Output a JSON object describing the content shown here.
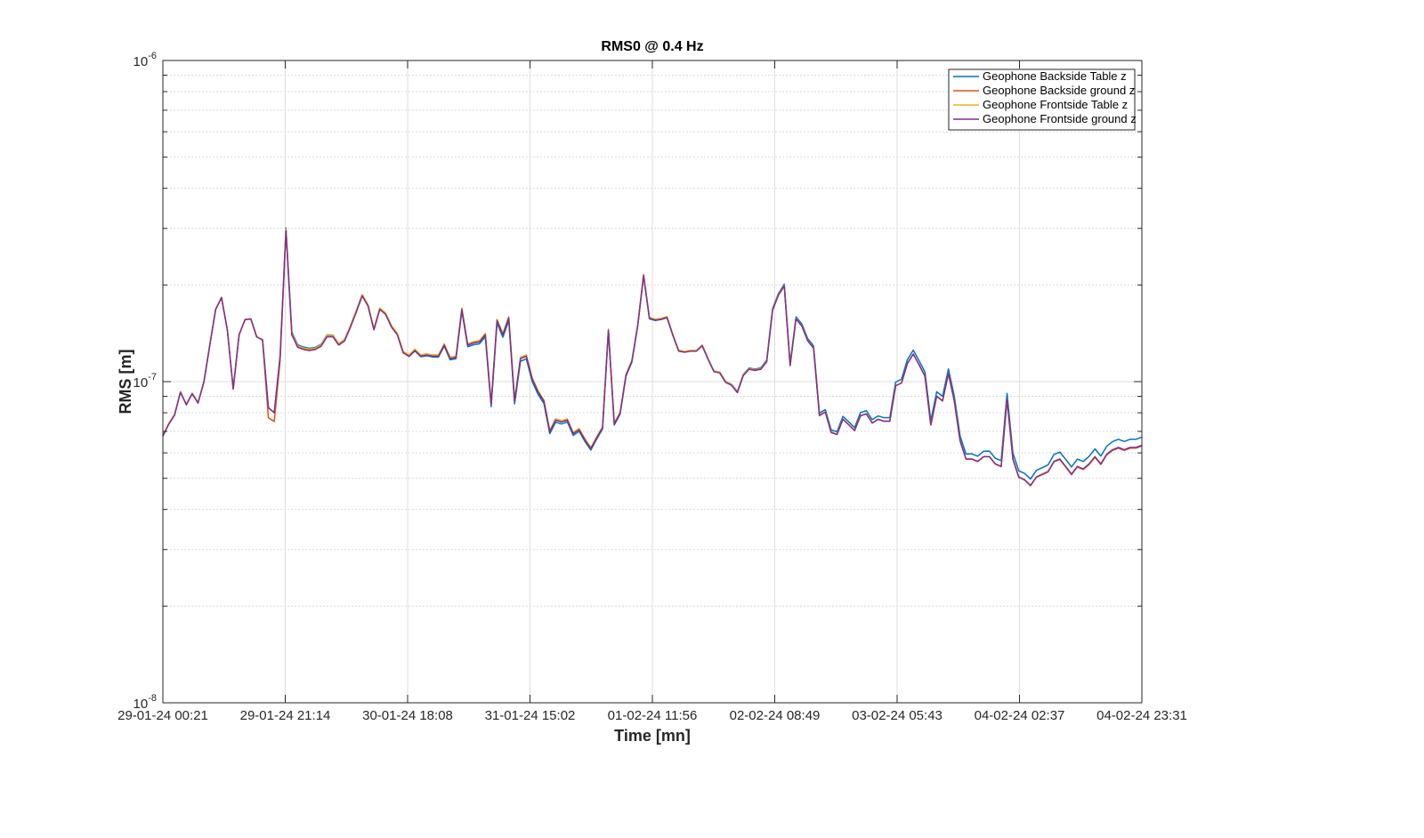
{
  "chart_data": {
    "type": "line",
    "title": "RMS0 @ 0.4 Hz",
    "xlabel": "Time [mn]",
    "ylabel": "RMS [m]",
    "yscale": "log",
    "ylim": [
      1e-08,
      1e-06
    ],
    "grid": true,
    "legend_position": "top-right",
    "y_ticks": [
      {
        "value": 1e-06,
        "base": "10",
        "exp": "-6"
      },
      {
        "value": 1e-07,
        "base": "10",
        "exp": "-7"
      },
      {
        "value": 1e-08,
        "base": "10",
        "exp": "-8"
      }
    ],
    "x_ticks": [
      "29-01-24 00:21",
      "29-01-24 21:14",
      "30-01-24 18:08",
      "31-01-24 15:02",
      "01-02-24 11:56",
      "02-02-24 08:49",
      "03-02-24 05:43",
      "04-02-24 02:37",
      "04-02-24 23:31"
    ],
    "x_start": "29-01-24 00:21",
    "x_end": "04-02-24 23:31",
    "base_series": [
      6.8,
      7.4,
      7.9,
      9.3,
      8.5,
      9.2,
      8.6,
      10.0,
      13.0,
      16.8,
      18.3,
      14.5,
      9.5,
      14.0,
      15.6,
      15.7,
      13.8,
      13.5,
      8.3,
      8.0,
      12.0,
      29.5,
      14.0,
      12.8,
      12.6,
      12.5,
      12.6,
      12.9,
      13.8,
      13.8,
      13.0,
      13.4,
      14.8,
      16.5,
      18.5,
      17.2,
      14.5,
      16.8,
      16.2,
      14.8,
      14.0,
      12.3,
      12.0,
      12.5,
      12.0,
      12.1,
      12.0,
      12.0,
      13.0,
      11.8,
      11.9,
      16.8,
      13.0,
      13.2,
      13.3,
      14.0,
      8.5,
      15.5,
      14.0,
      15.8,
      8.7,
      11.8,
      12.0,
      10.2,
      9.3,
      8.7,
      7.0,
      7.6,
      7.5,
      7.6,
      6.9,
      7.1,
      6.6,
      6.2,
      6.7,
      7.2,
      14.5,
      7.4,
      8.0,
      10.5,
      11.6,
      15.0,
      21.5,
      15.8,
      15.6,
      15.7,
      15.9,
      14.0,
      12.5,
      12.4,
      12.5,
      12.5,
      13.0,
      11.8,
      10.8,
      10.7,
      10.0,
      9.8,
      9.3,
      10.5,
      11.0,
      10.9,
      11.0,
      11.6,
      16.8,
      18.7,
      20.0,
      11.3,
      15.8,
      15.0,
      13.5,
      12.8,
      7.9,
      8.1,
      7.0,
      6.9,
      7.7,
      7.4,
      7.1,
      7.9,
      8.0,
      7.5,
      7.7,
      7.6,
      7.6,
      9.8,
      10.0,
      11.5,
      12.3,
      11.4,
      10.5,
      7.4,
      9.1,
      8.8,
      10.7,
      8.8,
      6.6,
      5.8,
      5.8,
      5.7,
      5.9,
      5.9,
      5.6,
      5.5,
      8.9,
      5.8,
      5.1,
      5.0,
      4.8,
      5.1,
      5.2,
      5.3,
      5.7,
      5.8,
      5.5,
      5.2,
      5.5,
      5.4,
      5.6,
      5.9,
      5.6,
      6.0,
      6.2,
      6.3,
      6.2,
      6.3,
      6.3,
      6.4
    ],
    "series": [
      {
        "name": "Geophone Backside Table z",
        "color": "#0072BD",
        "offset": [
          [
            0,
            0.0
          ],
          [
            20,
            0.0
          ],
          [
            21,
            0.02
          ],
          [
            60,
            -0.02
          ],
          [
            130,
            0.02
          ],
          [
            163,
            0.05
          ]
        ]
      },
      {
        "name": "Geophone Backside ground z",
        "color": "#D95319",
        "offset": [
          [
            0,
            0.0
          ],
          [
            17,
            0.0
          ],
          [
            18,
            -0.07
          ],
          [
            19,
            -0.06
          ],
          [
            21,
            0.0
          ],
          [
            60,
            0.0
          ],
          [
            130,
            -0.01
          ],
          [
            163,
            -0.015
          ]
        ]
      },
      {
        "name": "Geophone Frontside Table z",
        "color": "#EDB120",
        "offset": [
          [
            0,
            0.0
          ],
          [
            20,
            0.0
          ],
          [
            21,
            0.01
          ],
          [
            60,
            0.01
          ],
          [
            130,
            -0.01
          ],
          [
            163,
            -0.01
          ]
        ]
      },
      {
        "name": "Geophone Frontside ground z",
        "color": "#7E2F8E",
        "offset": [
          [
            0,
            -0.005
          ],
          [
            20,
            0.0
          ],
          [
            21,
            0.0
          ],
          [
            60,
            0.0
          ],
          [
            130,
            -0.01
          ],
          [
            163,
            -0.01
          ]
        ]
      }
    ]
  }
}
